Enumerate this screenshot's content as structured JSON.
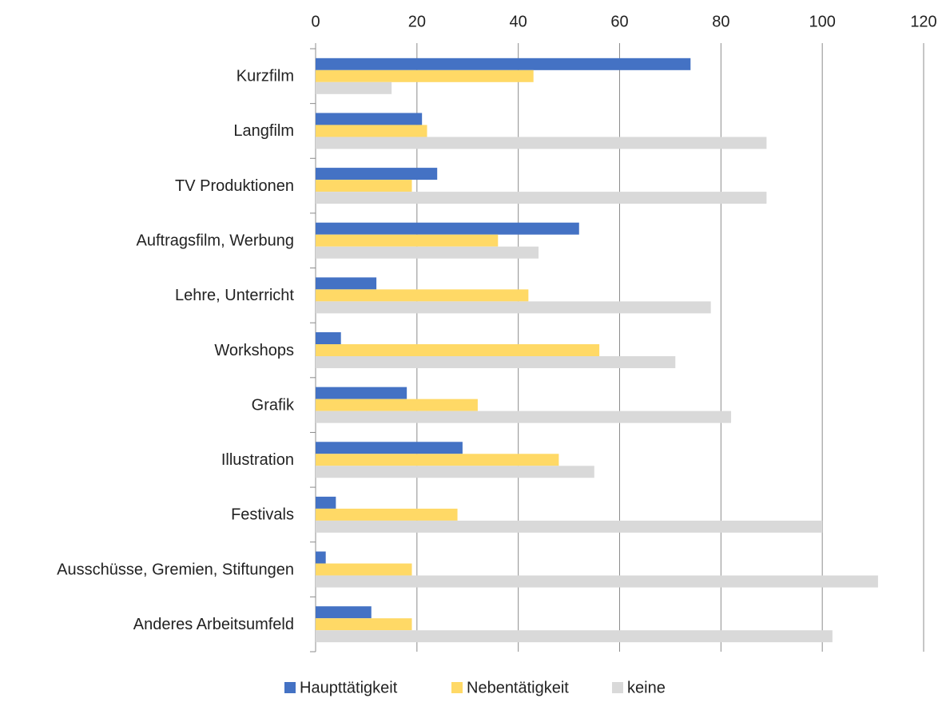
{
  "chart_data": {
    "type": "bar",
    "orientation": "horizontal",
    "categories": [
      "Kurzfilm",
      "Langfilm",
      "TV Produktionen",
      "Auftragsfilm, Werbung",
      "Lehre, Unterricht",
      "Workshops",
      "Grafik",
      "Illustration",
      "Festivals",
      "Ausschüsse, Gremien, Stiftungen",
      "Anderes Arbeitsumfeld"
    ],
    "series": [
      {
        "name": "Haupttätigkeit",
        "color": "#4472c4",
        "values": [
          74,
          21,
          24,
          52,
          12,
          5,
          18,
          29,
          4,
          2,
          11
        ]
      },
      {
        "name": "Nebentätigkeit",
        "color": "#ffd966",
        "values": [
          43,
          22,
          19,
          36,
          42,
          56,
          32,
          48,
          28,
          19,
          19
        ]
      },
      {
        "name": "keine",
        "color": "#d9d9d9",
        "values": [
          15,
          89,
          89,
          44,
          78,
          71,
          82,
          55,
          100,
          111,
          102
        ]
      }
    ],
    "xlim": [
      0,
      120
    ],
    "xticks": [
      0,
      20,
      40,
      60,
      80,
      100,
      120
    ],
    "grid": true,
    "legend": "bottom"
  }
}
